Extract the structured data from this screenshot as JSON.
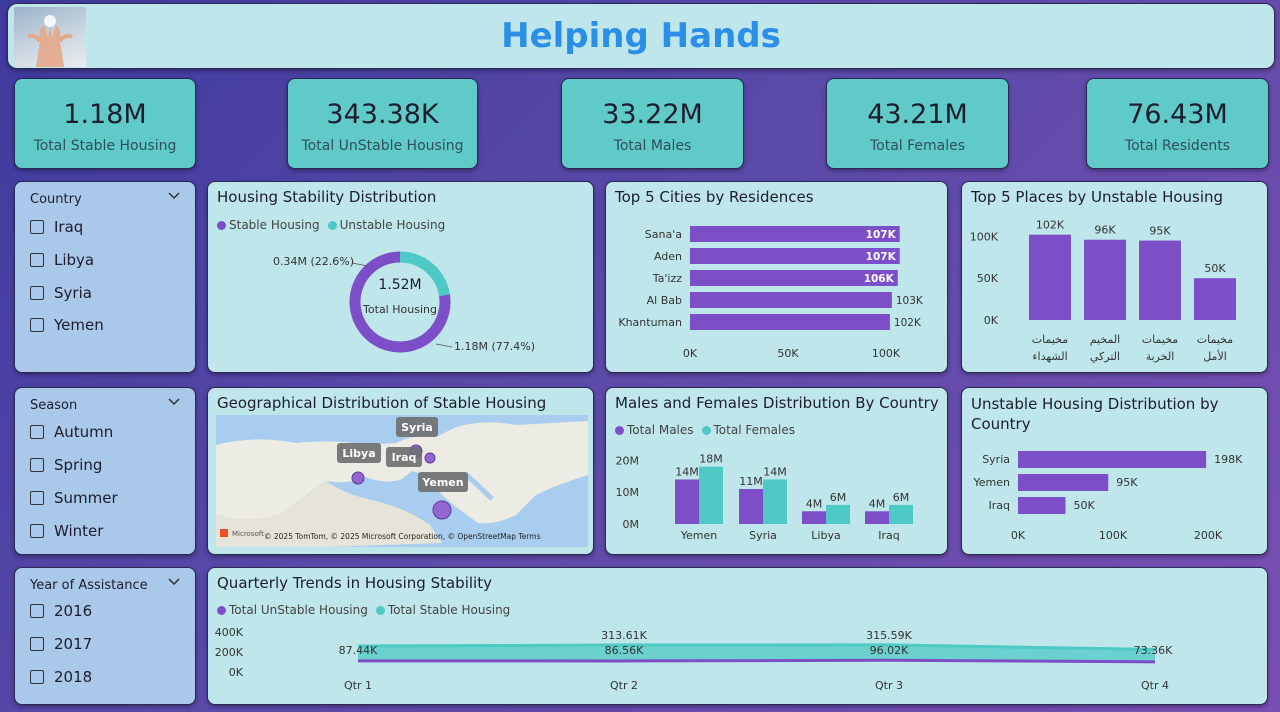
{
  "header": {
    "title": "Helping Hands"
  },
  "colors": {
    "stable": "#4ec9c5",
    "unstable": "#7c4fc8",
    "kpi_bg": "#5fcac8",
    "panel_bg": "#bfe6ea",
    "slicer_bg": "#a9c8ea",
    "title": "#2b8fe8"
  },
  "kpis": [
    {
      "value": "1.18M",
      "label": "Total Stable Housing"
    },
    {
      "value": "343.38K",
      "label": "Total UnStable Housing"
    },
    {
      "value": "33.22M",
      "label": "Total Males"
    },
    {
      "value": "43.21M",
      "label": "Total Females"
    },
    {
      "value": "76.43M",
      "label": "Total Residents"
    }
  ],
  "slicers": {
    "country": {
      "label": "Country",
      "items": [
        "Iraq",
        "Libya",
        "Syria",
        "Yemen"
      ]
    },
    "season": {
      "label": "Season",
      "items": [
        "Autumn",
        "Spring",
        "Summer",
        "Winter"
      ]
    },
    "year": {
      "label": "Year of Assistance",
      "items": [
        "2016",
        "2017",
        "2018"
      ]
    }
  },
  "icons": {
    "dropdown": "chevron-down-icon",
    "logo": "helping-hands-logo"
  },
  "donut": {
    "title": "Housing Stability Distribution",
    "legend": [
      "Stable Housing",
      "Unstable Housing"
    ],
    "center_value": "1.52M",
    "center_label": "Total Housing",
    "label_unstable": "0.34M (22.6%)",
    "label_stable": "1.18M (77.4%)",
    "chart_data": {
      "type": "pie",
      "categories": [
        "Stable Housing",
        "Unstable Housing"
      ],
      "values": [
        77.4,
        22.6
      ]
    }
  },
  "cities": {
    "title": "Top 5 Cities by Residences",
    "xticks": [
      "0K",
      "50K",
      "100K"
    ],
    "chart_data": {
      "type": "bar",
      "orientation": "horizontal",
      "categories": [
        "Sana'a",
        "Aden",
        "Ta'izz",
        "Al Bab",
        "Khantuman"
      ],
      "values": [
        107,
        107,
        106,
        103,
        102
      ],
      "labels": [
        "107K",
        "107K",
        "106K",
        "103K",
        "102K"
      ],
      "xlim": [
        0,
        110
      ]
    }
  },
  "places": {
    "title": "Top 5 Places by Unstable Housing",
    "yticks": [
      "100K",
      "50K",
      "0K"
    ],
    "chart_data": {
      "type": "bar",
      "categories": [
        "مخيمات الشهداء",
        "المخيم التركي",
        "مخيمات الخربة",
        "مخيمات الأمل"
      ],
      "values": [
        102,
        96,
        95,
        50
      ],
      "labels": [
        "102K",
        "96K",
        "95K",
        "50K"
      ],
      "ylim": [
        0,
        110
      ]
    }
  },
  "map": {
    "title": "Geographical Distribution of Stable Housing",
    "labels": [
      "Syria",
      "Libya",
      "Iraq",
      "Yemen"
    ],
    "attribution": "© 2025 TomTom, © 2025 Microsoft Corporation, © OpenStreetMap  Terms",
    "brand": "Microsoft"
  },
  "gender": {
    "title": "Males and Females Distribution By Country",
    "legend": [
      "Total Males",
      "Total Females"
    ],
    "yticks": [
      "20M",
      "10M",
      "0M"
    ],
    "chart_data": {
      "type": "bar",
      "categories": [
        "Yemen",
        "Syria",
        "Libya",
        "Iraq"
      ],
      "series": [
        {
          "name": "Total Males",
          "values": [
            14,
            11,
            4,
            4
          ],
          "labels": [
            "14M",
            "11M",
            "4M",
            "4M"
          ]
        },
        {
          "name": "Total Females",
          "values": [
            18,
            14,
            6,
            6
          ],
          "labels": [
            "18M",
            "14M",
            "6M",
            "6M"
          ]
        }
      ],
      "ylim": [
        0,
        22
      ]
    }
  },
  "unstable_country": {
    "title": "Unstable Housing Distribution by Country",
    "xticks": [
      "0K",
      "100K",
      "200K"
    ],
    "chart_data": {
      "type": "bar",
      "orientation": "horizontal",
      "categories": [
        "Syria",
        "Yemen",
        "Iraq"
      ],
      "values": [
        198,
        95,
        50
      ],
      "labels": [
        "198K",
        "95K",
        "50K"
      ],
      "xlim": [
        0,
        200
      ]
    }
  },
  "quarterly": {
    "title": "Quarterly Trends in Housing Stability",
    "legend": [
      "Total UnStable Housing",
      "Total Stable Housing"
    ],
    "yticks": [
      "400K",
      "200K",
      "0K"
    ],
    "chart_data": {
      "type": "area",
      "categories": [
        "Qtr 1",
        "Qtr 2",
        "Qtr 3",
        "Qtr 4"
      ],
      "series": [
        {
          "name": "Total UnStable Housing",
          "values": [
            87.44,
            86.56,
            96.02,
            73.36
          ],
          "labels": [
            "87.44K",
            "86.56K",
            "96.02K",
            "73.36K"
          ]
        },
        {
          "name": "Total Stable Housing",
          "values": [
            300,
            313.61,
            315.59,
            250
          ],
          "labels": [
            "",
            "313.61K",
            "315.59K",
            ""
          ]
        }
      ],
      "ylim": [
        0,
        400
      ]
    }
  }
}
